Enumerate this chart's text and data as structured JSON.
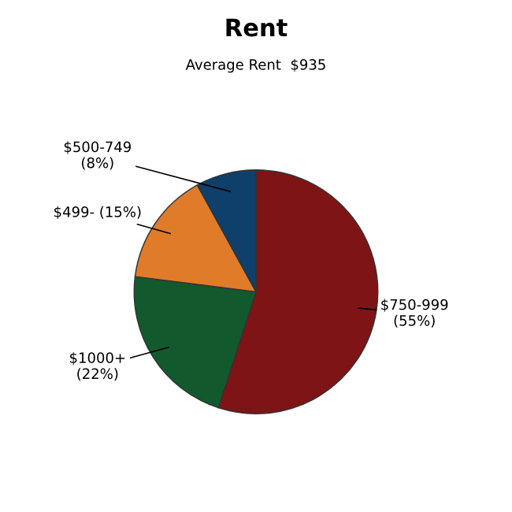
{
  "chart_data": {
    "type": "pie",
    "title": "Rent",
    "subtitle": "Average Rent  $935",
    "categories": [
      "$750-999",
      "$1000+",
      "$499-",
      "$500-749"
    ],
    "values": [
      55,
      22,
      15,
      8
    ],
    "value_labels": [
      "(55%)",
      "(22%)",
      "(15%)",
      "(8%)"
    ],
    "colors": [
      "#7f1416",
      "#13592e",
      "#e07b2a",
      "#0f3f6b"
    ],
    "legend": false
  }
}
